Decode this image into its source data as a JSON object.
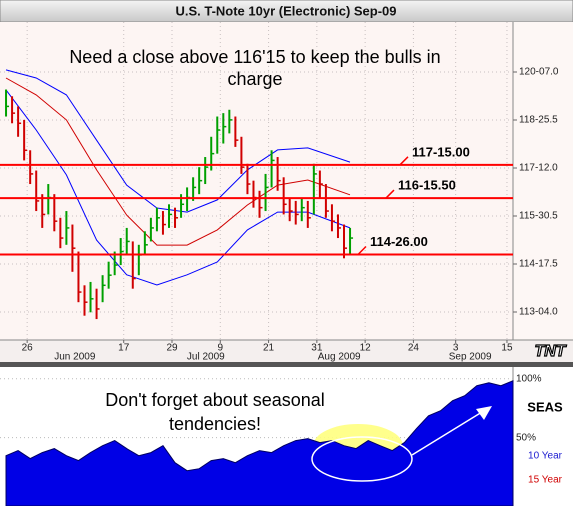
{
  "title": "U.S. T-Note 10yr (Electronic) Sep-09",
  "chart_data": [
    {
      "type": "hlc",
      "logo": "TNT",
      "annotation": [
        "Need a close above 116'15 to keep the bulls in",
        "charge"
      ],
      "up_color": "#00a000",
      "down_color": "#d00000",
      "xlim": [
        -1,
        84
      ],
      "ylim": [
        112.28,
        121.7
      ],
      "grid": true,
      "xticks": [
        {
          "value": 3.5,
          "label": "26"
        },
        {
          "value": 19.5,
          "label": "17"
        },
        {
          "value": 27.5,
          "label": "29"
        },
        {
          "value": 35.5,
          "label": "9"
        },
        {
          "value": 43.5,
          "label": "21"
        },
        {
          "value": 51.5,
          "label": "31"
        },
        {
          "value": 59.5,
          "label": "12"
        },
        {
          "value": 67.5,
          "label": "24"
        },
        {
          "value": 74.5,
          "label": "3"
        },
        {
          "value": 83,
          "label": "15"
        }
      ],
      "month_ticks": [
        {
          "value": 11.4,
          "label": "Jun 2009"
        },
        {
          "value": 33.1,
          "label": "Jul 2009"
        },
        {
          "value": 55.2,
          "label": "Aug 2009"
        },
        {
          "value": 76.9,
          "label": "Sep 2009"
        }
      ],
      "yticks": [
        {
          "value": 120.21875,
          "label": "120-07.0"
        },
        {
          "value": 118.796875,
          "label": "118-25.5"
        },
        {
          "value": 117.375,
          "label": "117-12.0"
        },
        {
          "value": 115.953125,
          "label": "115-30.5"
        },
        {
          "value": 114.53125,
          "label": "114-17.5"
        },
        {
          "value": 113.109375,
          "label": "113-04.0"
        }
      ],
      "high": [
        119.7,
        119.5,
        119.2,
        118.8,
        117.9,
        117.3,
        116.6,
        116.9,
        116.6,
        115.9,
        116.1,
        115.7,
        114.9,
        113.9,
        114.0,
        113.8,
        114.2,
        114.6,
        114.9,
        115.3,
        115.6,
        115.2,
        115.1,
        115.5,
        115.9,
        116.2,
        116.1,
        116.3,
        116.2,
        116.6,
        116.8,
        117.1,
        117.4,
        117.7,
        118.3,
        118.9,
        119.0,
        119.1,
        118.9,
        118.3,
        117.5,
        117.0,
        116.7,
        117.2,
        117.9,
        117.7,
        117.1,
        116.5,
        116.4,
        116.5,
        116.4,
        117.5,
        117.3,
        116.9,
        116.3,
        116.0,
        115.7,
        115.6
      ],
      "low": [
        118.9,
        118.7,
        118.3,
        117.6,
        116.9,
        116.1,
        115.6,
        116.0,
        115.5,
        115.0,
        115.1,
        114.3,
        113.4,
        113.0,
        113.1,
        112.9,
        113.4,
        113.8,
        114.2,
        114.5,
        114.8,
        113.8,
        114.2,
        114.8,
        115.2,
        115.5,
        115.4,
        115.6,
        115.6,
        115.9,
        116.1,
        116.4,
        116.6,
        116.9,
        117.3,
        117.8,
        118.1,
        118.4,
        118.0,
        117.2,
        116.6,
        116.2,
        115.9,
        116.1,
        116.8,
        116.7,
        116.0,
        115.8,
        115.7,
        115.8,
        115.6,
        116.0,
        116.5,
        115.9,
        115.5,
        115.3,
        114.7,
        114.8
      ],
      "close": [
        119.2,
        119.0,
        118.7,
        117.9,
        117.2,
        116.4,
        116.0,
        116.5,
        115.8,
        115.3,
        115.6,
        115.0,
        113.7,
        113.4,
        113.5,
        113.2,
        113.9,
        114.2,
        114.5,
        114.9,
        115.2,
        114.1,
        114.8,
        115.1,
        115.6,
        115.9,
        115.7,
        116.0,
        115.9,
        116.3,
        116.5,
        116.8,
        117.0,
        117.4,
        117.8,
        118.5,
        118.6,
        118.8,
        118.2,
        117.4,
        116.9,
        116.5,
        116.2,
        116.8,
        117.6,
        117.0,
        116.3,
        116.1,
        116.0,
        116.2,
        115.9,
        117.2,
        116.9,
        116.1,
        115.8,
        115.6,
        115.0,
        115.3
      ],
      "bands": {
        "x": [
          0,
          5,
          10,
          15,
          20,
          25,
          30,
          35,
          40,
          45,
          50,
          57
        ],
        "series": [
          {
            "color": "#0000ff",
            "values": [
              120.28,
              120.04,
              119.54,
              118.2,
              116.87,
              116.19,
              116.07,
              116.43,
              117.32,
              117.91,
              117.97,
              117.55
            ]
          },
          {
            "color": "#d00000",
            "values": [
              120.04,
              119.54,
              118.8,
              117.32,
              115.98,
              115.09,
              115.09,
              115.54,
              116.28,
              116.87,
              117.02,
              116.58
            ]
          },
          {
            "color": "#0000ff",
            "values": [
              119.69,
              118.5,
              117.17,
              115.24,
              114.21,
              113.91,
              114.21,
              114.59,
              115.54,
              116.07,
              116.07,
              115.6
            ]
          }
        ]
      },
      "level_color": "#ff0000",
      "levels": [
        {
          "value": 117.46875,
          "label": "117-15.00"
        },
        {
          "value": 116.484375,
          "label": "116-15.50"
        },
        {
          "value": 114.8125,
          "label": "114-26.00"
        }
      ]
    },
    {
      "type": "area",
      "title": "SEAS",
      "color": "#0000e6",
      "annotation": [
        "Don't forget about seasonal",
        "tendencies!"
      ],
      "xlim": [
        -1,
        84
      ],
      "ylim": [
        -8,
        110
      ],
      "yticks": [
        {
          "value": 100,
          "label": "100%"
        },
        {
          "value": 50,
          "label": "50%"
        }
      ],
      "legend": [
        {
          "label": "10 Year",
          "color": "#1a1ad0"
        },
        {
          "label": "15 Year",
          "color": "#d00000"
        }
      ],
      "x": [
        0,
        2,
        4,
        6,
        8,
        10,
        12,
        14,
        16,
        18,
        20,
        22,
        24,
        26,
        28,
        30,
        32,
        34,
        36,
        38,
        40,
        42,
        44,
        46,
        48,
        50,
        52,
        54,
        56,
        58,
        60,
        62,
        64,
        66,
        68,
        70,
        72,
        74,
        76,
        78,
        80,
        82,
        84
      ],
      "values": [
        34.7,
        39.0,
        32.2,
        37.3,
        40.7,
        34.7,
        30.5,
        37.3,
        43.2,
        47.5,
        40.7,
        34.7,
        37.3,
        43.2,
        28.8,
        22.0,
        23.7,
        30.5,
        32.2,
        28.8,
        34.7,
        39.0,
        37.3,
        43.2,
        47.5,
        49.2,
        45.8,
        47.5,
        43.2,
        40.7,
        47.5,
        43.2,
        39.0,
        45.8,
        57.6,
        68.6,
        72.9,
        81.4,
        85.6,
        94.1,
        96.6,
        94.1,
        98.3
      ]
    }
  ]
}
